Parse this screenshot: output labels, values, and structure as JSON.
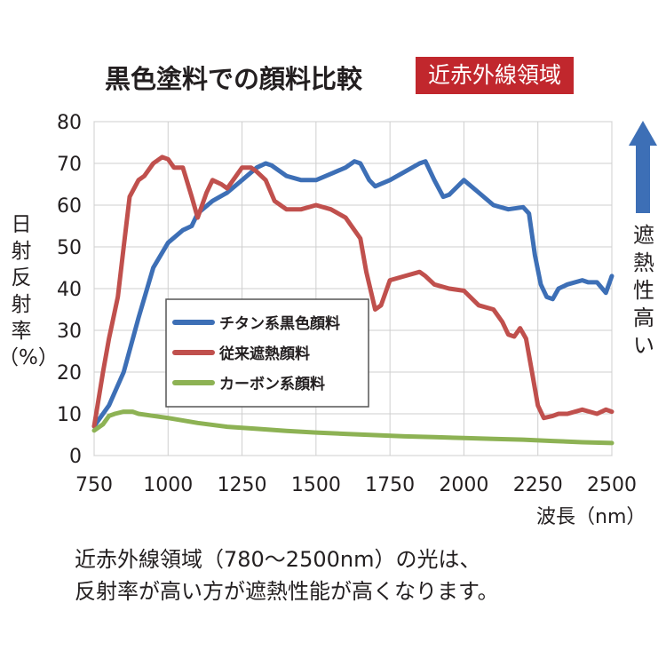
{
  "header": {
    "title": "黒色塗料での顔料比較",
    "badge": "近赤外線領域",
    "badge_color": "#c1272d"
  },
  "y_axis_label": [
    "日",
    "射",
    "反",
    "射",
    "率",
    "（%）"
  ],
  "x_axis_unit": "波長（nm）",
  "right_note": {
    "lines": [
      "遮",
      "熱",
      "性",
      "高",
      "い"
    ],
    "arrow_color": "#3d6fb6"
  },
  "footnote": [
    "近赤外線領域（780〜2500nm）の光は、",
    "反射率が高い方が遮熱性能が高くなります。"
  ],
  "chart_data": {
    "type": "line",
    "xlim": [
      750,
      2500
    ],
    "ylim": [
      0,
      80
    ],
    "x_ticks": [
      750,
      1000,
      1250,
      1500,
      1750,
      2000,
      2250,
      2500
    ],
    "y_ticks": [
      0,
      10,
      20,
      30,
      40,
      50,
      60,
      70,
      80
    ],
    "grid": true,
    "legend_position": "center-left",
    "series": [
      {
        "name": "チタン系黒色顔料",
        "color": "#3d6fb6",
        "x": [
          750,
          800,
          850,
          900,
          950,
          1000,
          1050,
          1080,
          1100,
          1150,
          1200,
          1250,
          1300,
          1330,
          1350,
          1400,
          1450,
          1500,
          1550,
          1600,
          1630,
          1650,
          1680,
          1700,
          1750,
          1800,
          1850,
          1870,
          1900,
          1930,
          1950,
          2000,
          2050,
          2100,
          2150,
          2200,
          2220,
          2240,
          2260,
          2280,
          2300,
          2320,
          2350,
          2400,
          2420,
          2450,
          2480,
          2500
        ],
        "y": [
          7,
          12,
          20,
          33,
          45,
          51,
          54,
          55,
          58,
          61,
          63,
          66,
          69,
          70,
          69.5,
          67,
          66,
          66,
          67.5,
          69,
          70.5,
          70,
          66,
          64.5,
          66,
          68,
          70,
          70.5,
          66,
          62,
          62.5,
          66,
          63,
          60,
          59,
          59.5,
          58,
          48,
          41,
          38,
          37.5,
          40,
          41,
          42,
          41.5,
          41.5,
          39,
          43
        ]
      },
      {
        "name": "従来遮熱顔料",
        "color": "#c0504d",
        "x": [
          750,
          780,
          800,
          830,
          850,
          870,
          900,
          920,
          950,
          980,
          1000,
          1020,
          1050,
          1080,
          1100,
          1130,
          1150,
          1180,
          1200,
          1250,
          1280,
          1300,
          1330,
          1360,
          1400,
          1450,
          1500,
          1550,
          1600,
          1650,
          1670,
          1700,
          1720,
          1750,
          1800,
          1850,
          1870,
          1900,
          1950,
          2000,
          2050,
          2100,
          2130,
          2150,
          2170,
          2190,
          2210,
          2230,
          2250,
          2270,
          2300,
          2320,
          2350,
          2400,
          2450,
          2480,
          2500
        ],
        "y": [
          7,
          20,
          28,
          38,
          50,
          62,
          66,
          67,
          70,
          71.5,
          71,
          69,
          69,
          62,
          57,
          63,
          66,
          65,
          64,
          69,
          69,
          68,
          66,
          61,
          59,
          59,
          60,
          59,
          57,
          52,
          44,
          35,
          36,
          42,
          43,
          44,
          43,
          41,
          40,
          39.5,
          36,
          35,
          32,
          29,
          28.5,
          30.5,
          28,
          20,
          12,
          9,
          9.5,
          10,
          10,
          11,
          10,
          11,
          10.5
        ]
      },
      {
        "name": "カーボン系顔料",
        "color": "#8db254",
        "x": [
          750,
          780,
          800,
          820,
          850,
          880,
          900,
          1000,
          1100,
          1200,
          1300,
          1400,
          1500,
          1600,
          1700,
          1800,
          1900,
          2000,
          2100,
          2200,
          2300,
          2400,
          2500
        ],
        "y": [
          6,
          7.5,
          9.5,
          10,
          10.5,
          10.5,
          10,
          9,
          7.8,
          6.9,
          6.4,
          5.9,
          5.5,
          5.2,
          4.9,
          4.6,
          4.4,
          4.2,
          4,
          3.8,
          3.5,
          3.2,
          3
        ]
      }
    ]
  }
}
